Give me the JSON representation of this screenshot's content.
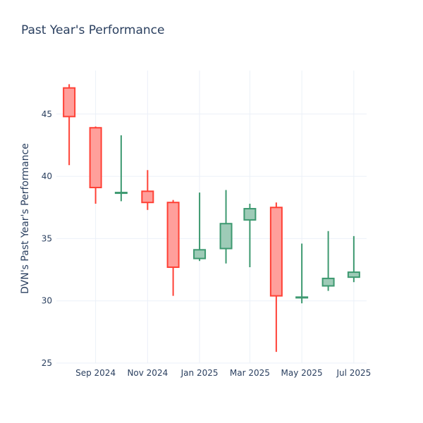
{
  "chart_data": {
    "type": "candlestick",
    "title": "Past Year's Performance",
    "xlabel": "",
    "ylabel": "DVN's Past Year's Performance",
    "ylim": [
      25,
      48.5
    ],
    "y_ticks": [
      25,
      30,
      35,
      40,
      45
    ],
    "x_ticks": [
      {
        "label": "Sep 2024",
        "date": "2024-09-01"
      },
      {
        "label": "Nov 2024",
        "date": "2024-11-01"
      },
      {
        "label": "Jan 2025",
        "date": "2025-01-01"
      },
      {
        "label": "Mar 2025",
        "date": "2025-03-01"
      },
      {
        "label": "May 2025",
        "date": "2025-05-01"
      },
      {
        "label": "Jul 2025",
        "date": "2025-07-01"
      }
    ],
    "xlim": [
      "2024-07-17",
      "2025-07-16"
    ],
    "grid": true,
    "increasing_color": "#3d9970",
    "increasing_fill": "#9ecbb7",
    "decreasing_color": "#ff4136",
    "decreasing_fill": "#ff9f9b",
    "candles": [
      {
        "date": "2024-08-01",
        "open": 47.1,
        "high": 47.4,
        "low": 40.9,
        "close": 44.8
      },
      {
        "date": "2024-09-01",
        "open": 43.9,
        "high": 44.0,
        "low": 37.8,
        "close": 39.1
      },
      {
        "date": "2024-10-01",
        "open": 38.7,
        "high": 43.3,
        "low": 38.0,
        "close": 38.7
      },
      {
        "date": "2024-11-01",
        "open": 38.8,
        "high": 40.5,
        "low": 37.3,
        "close": 37.9
      },
      {
        "date": "2024-12-01",
        "open": 37.9,
        "high": 38.1,
        "low": 30.4,
        "close": 32.7
      },
      {
        "date": "2025-01-01",
        "open": 33.4,
        "high": 38.7,
        "low": 33.2,
        "close": 34.1
      },
      {
        "date": "2025-02-01",
        "open": 34.2,
        "high": 38.9,
        "low": 33.0,
        "close": 36.2
      },
      {
        "date": "2025-03-01",
        "open": 36.5,
        "high": 37.8,
        "low": 32.7,
        "close": 37.4
      },
      {
        "date": "2025-04-01",
        "open": 37.5,
        "high": 37.9,
        "low": 25.9,
        "close": 30.4
      },
      {
        "date": "2025-05-01",
        "open": 30.3,
        "high": 34.6,
        "low": 29.8,
        "close": 30.3
      },
      {
        "date": "2025-06-01",
        "open": 31.2,
        "high": 35.6,
        "low": 30.8,
        "close": 31.8
      },
      {
        "date": "2025-07-01",
        "open": 31.9,
        "high": 35.2,
        "low": 31.5,
        "close": 32.3
      }
    ]
  }
}
